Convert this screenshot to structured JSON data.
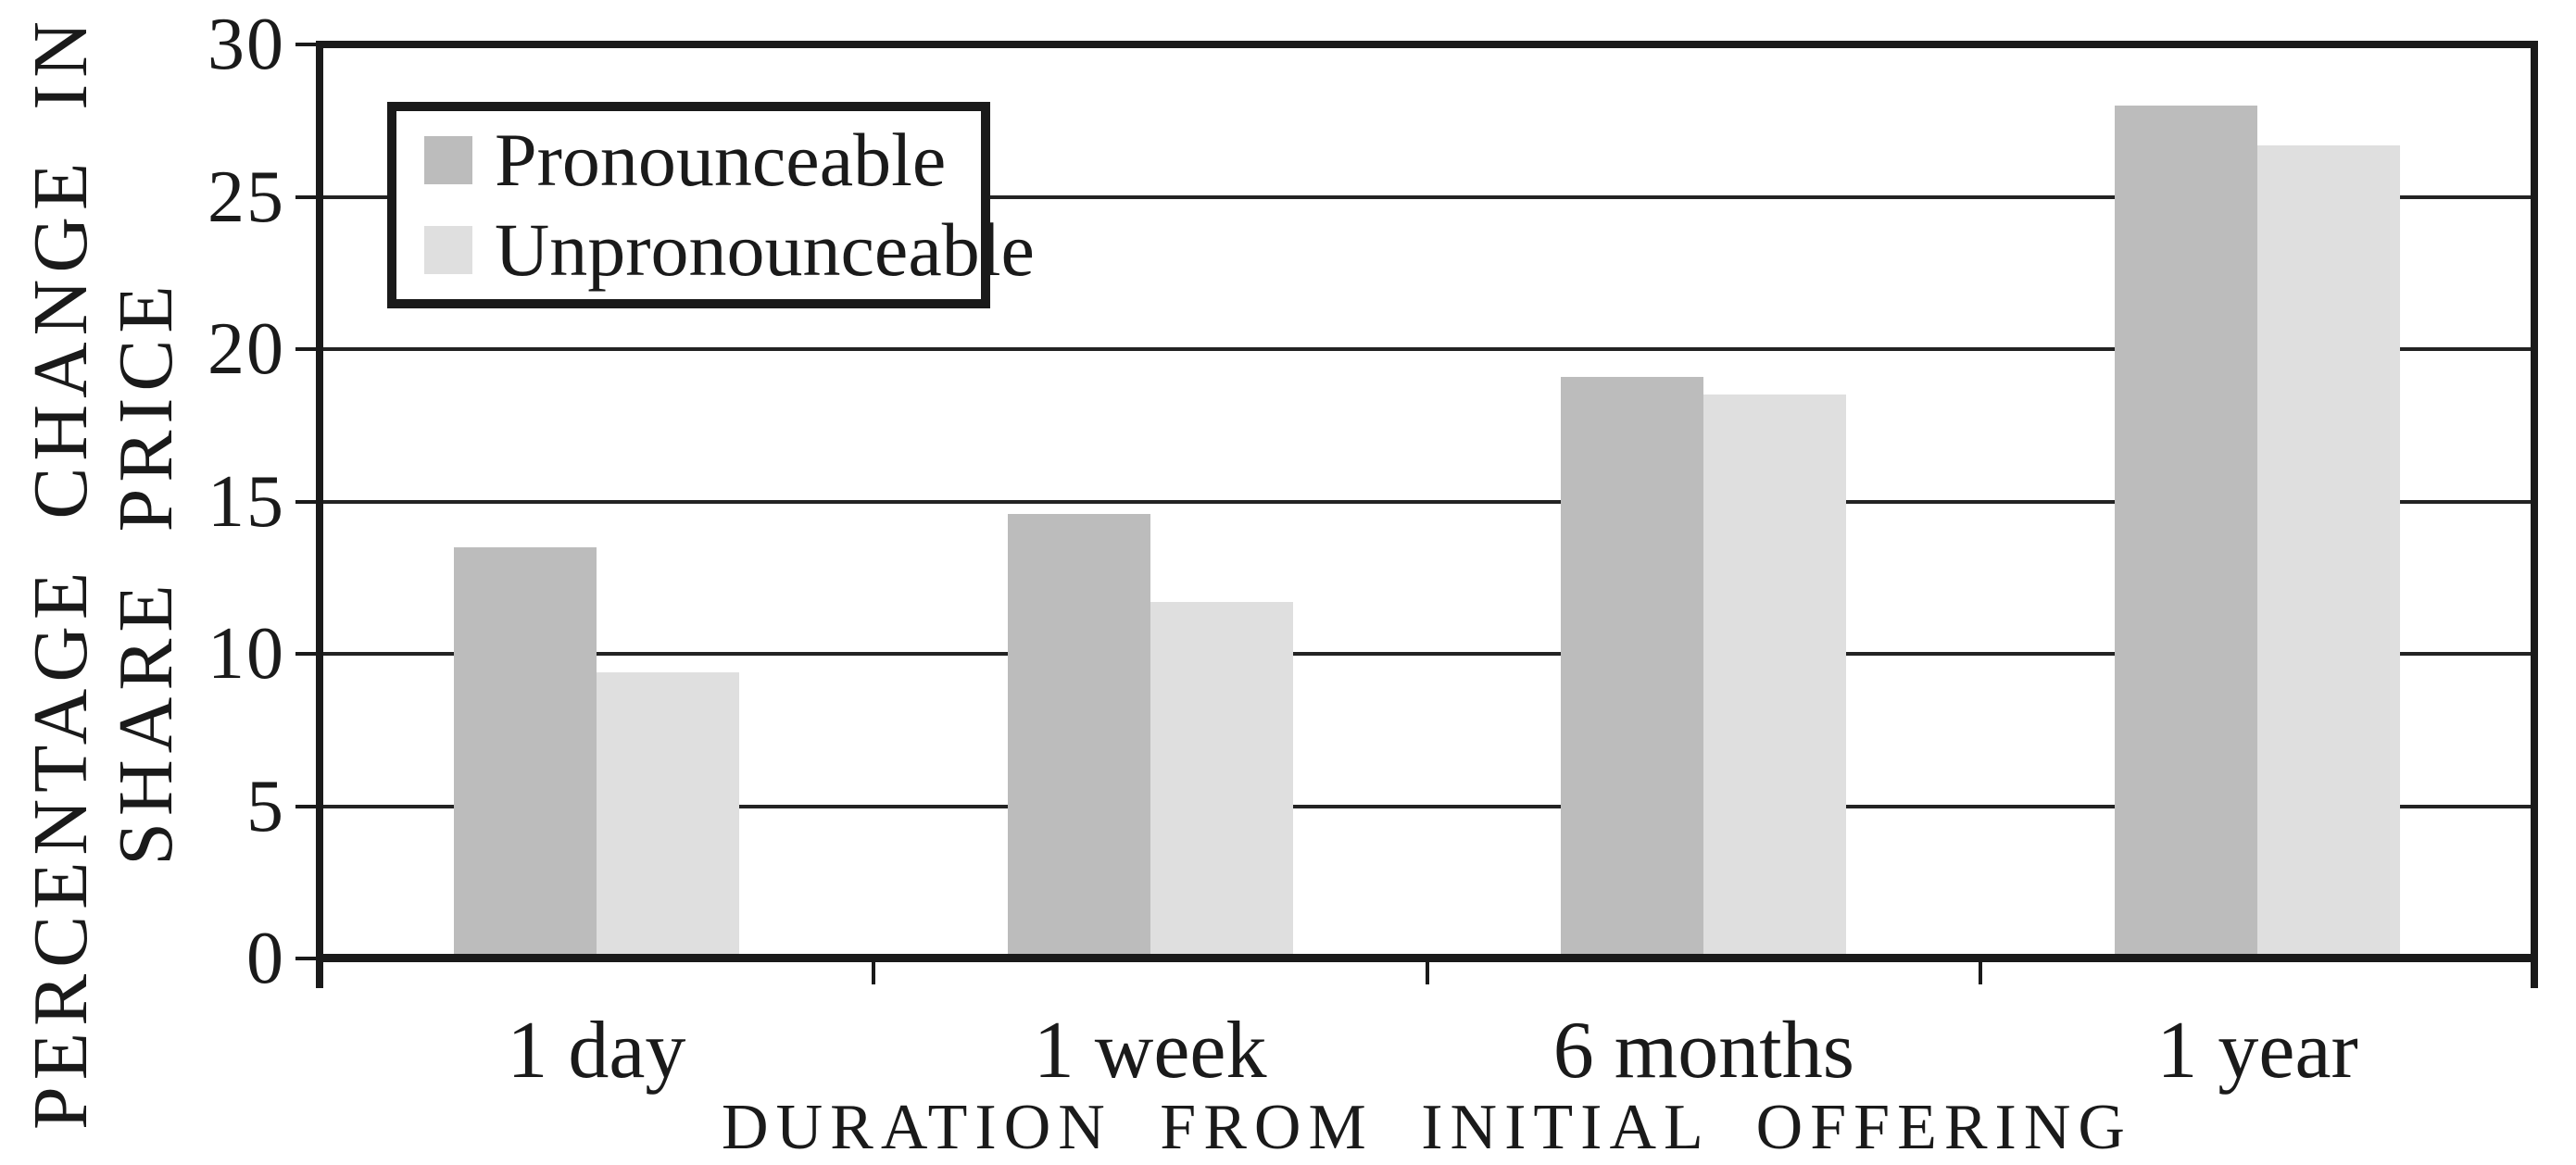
{
  "chart_data": {
    "type": "bar",
    "title": "",
    "categories": [
      "1 day",
      "1 week",
      "6 months",
      "1 year"
    ],
    "series": [
      {
        "name": "Pronounceable",
        "color": "#bcbcbc",
        "values": [
          13.5,
          14.6,
          19.1,
          28.0
        ]
      },
      {
        "name": "Unpronounceable",
        "color": "#dfdfdf",
        "values": [
          9.4,
          11.7,
          18.5,
          26.7
        ]
      }
    ],
    "xlabel": "DURATION FROM INITIAL OFFERING",
    "ylabel_line1": "PERCENTAGE CHANGE IN",
    "ylabel_line2": "SHARE PRICE",
    "ylim": [
      0,
      30
    ],
    "yticks": [
      0,
      5,
      10,
      15,
      20,
      25,
      30
    ],
    "grid": "horizontal gridlines at every y tick, drawn behind bars",
    "legend_position": "top-left inside plot, boxed",
    "axis_color": "#1a1a1a",
    "background_color": "#ffffff"
  }
}
